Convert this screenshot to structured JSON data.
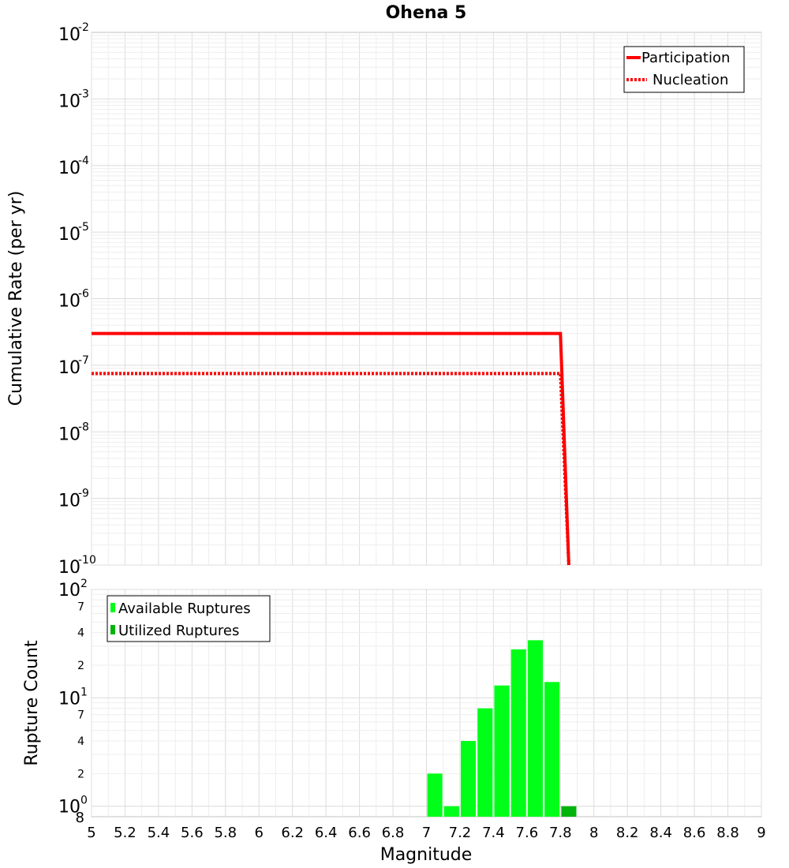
{
  "chart_data": [
    {
      "type": "line",
      "title": "Ohena 5",
      "xlabel": "",
      "ylabel": "Cumulative Rate (per yr)",
      "xlim": [
        5,
        9
      ],
      "ylim": [
        1e-10,
        0.01
      ],
      "yscale": "log",
      "grid": true,
      "legend": "top-right",
      "ytick_bases": [
        "10",
        "10",
        "10",
        "10",
        "10",
        "10",
        "10",
        "10",
        "10"
      ],
      "ytick_exps": [
        "-2",
        "-3",
        "-4",
        "-5",
        "-6",
        "-7",
        "-8",
        "-9",
        "-10"
      ],
      "series": [
        {
          "name": "Participation",
          "style": "solid",
          "color": "#ff0000",
          "x": [
            5.0,
            7.8,
            7.85
          ],
          "y": [
            3e-07,
            3e-07,
            1e-10
          ]
        },
        {
          "name": "Nucleation",
          "style": "dotted",
          "color": "#ff0000",
          "x": [
            5.0,
            7.8,
            7.85
          ],
          "y": [
            7.5e-08,
            7.5e-08,
            1e-10
          ]
        }
      ]
    },
    {
      "type": "bar",
      "xlabel": "Magnitude",
      "ylabel": "Rupture Count",
      "xlim": [
        5,
        9
      ],
      "yscale": "log",
      "grid": true,
      "legend": "top-left",
      "xticks": [
        "5",
        "5.2",
        "5.4",
        "5.6",
        "5.8",
        "6",
        "6.2",
        "6.4",
        "6.6",
        "6.8",
        "7",
        "7.2",
        "7.4",
        "7.6",
        "7.8",
        "8",
        "8.2",
        "8.4",
        "8.6",
        "8.8",
        "9"
      ],
      "ytick_labels": {
        "major_base": [
          "10",
          "10",
          "10"
        ],
        "major_exp": [
          "2",
          "1",
          "0"
        ],
        "minor": [
          "7",
          "4",
          "2",
          "7",
          "4",
          "2",
          "8"
        ]
      },
      "bar_width": 0.09,
      "series": [
        {
          "name": "Available Ruptures",
          "color": "#00ff18",
          "x": [
            7.05,
            7.15,
            7.25,
            7.35,
            7.45,
            7.55,
            7.65,
            7.75
          ],
          "values": [
            2,
            1,
            4,
            8,
            13,
            28,
            34,
            14
          ]
        },
        {
          "name": "Utilized Ruptures",
          "color": "#00b40c",
          "x": [
            7.85
          ],
          "values": [
            1
          ]
        }
      ]
    }
  ]
}
